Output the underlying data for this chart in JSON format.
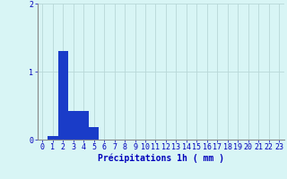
{
  "categories": [
    0,
    1,
    2,
    3,
    4,
    5,
    6,
    7,
    8,
    9,
    10,
    11,
    12,
    13,
    14,
    15,
    16,
    17,
    18,
    19,
    20,
    21,
    22,
    23
  ],
  "values": [
    0.0,
    0.05,
    1.3,
    0.42,
    0.42,
    0.18,
    0.0,
    0.0,
    0.0,
    0.0,
    0.0,
    0.0,
    0.0,
    0.0,
    0.0,
    0.0,
    0.0,
    0.0,
    0.0,
    0.0,
    0.0,
    0.0,
    0.0,
    0.0
  ],
  "bar_color": "#1a3cc8",
  "background_color": "#d8f5f5",
  "grid_color": "#b8d8d8",
  "text_color": "#0000bb",
  "xlabel": "Précipitations 1h ( mm )",
  "ylim": [
    0,
    2
  ],
  "yticks": [
    0,
    1,
    2
  ],
  "xlim": [
    -0.5,
    23.5
  ],
  "xlabel_fontsize": 7,
  "tick_fontsize": 6
}
